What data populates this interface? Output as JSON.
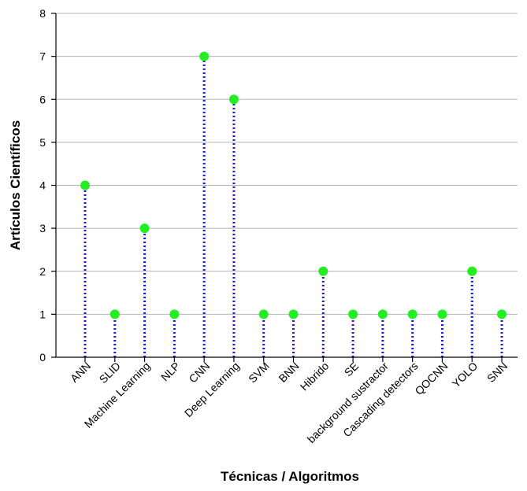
{
  "chart_data": {
    "type": "scatter",
    "style": "lollipop",
    "categories": [
      "ANN",
      "SLID",
      "Machine Learning",
      "NLP",
      "CNN",
      "Deep Learning",
      "SVM",
      "BNN",
      "Hibrido",
      "SE",
      "background sustractor",
      "Cascading detectors",
      "QOCNN",
      "YOLO",
      "SNN"
    ],
    "values": [
      4,
      1,
      3,
      1,
      7,
      6,
      1,
      1,
      2,
      1,
      1,
      1,
      1,
      2,
      1
    ],
    "title": "",
    "xlabel": "Técnicas / Algoritmos",
    "ylabel": "Artículos Científicos",
    "ylim": [
      0,
      8
    ],
    "yticks": [
      0,
      1,
      2,
      3,
      4,
      5,
      6,
      7,
      8
    ],
    "grid": true,
    "legend": "none"
  },
  "colors": {
    "marker": "#22ee22",
    "stem": "#1a1acc",
    "grid": "#b4b4b4",
    "axis": "#000000"
  }
}
